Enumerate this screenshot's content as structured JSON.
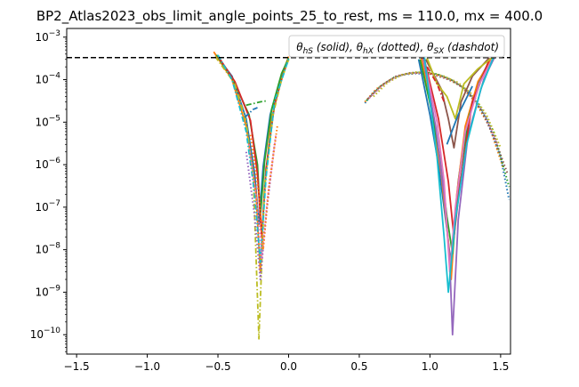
{
  "chart_data": {
    "type": "line",
    "title": "BP2_Atlas2023_obs_limit_angle_points_25_to_rest, ms = 110.0, mx = 400.0",
    "xlabel": "",
    "ylabel": "",
    "xlim": [
      -1.57,
      1.57
    ],
    "ylim": [
      3.5e-11,
      0.0016
    ],
    "yscale": "log",
    "grid": false,
    "x_ticks": [
      -1.5,
      -1.0,
      -0.5,
      0.0,
      0.5,
      1.0,
      1.5
    ],
    "x_tick_labels": [
      "−1.5",
      "−1.0",
      "−0.5",
      "0.0",
      "0.5",
      "1.0",
      "1.5"
    ],
    "y_ticks": [
      1e-10,
      1e-09,
      1e-08,
      1e-07,
      1e-06,
      1e-05,
      0.0001,
      0.001
    ],
    "y_tick_labels": [
      {
        "base": "10",
        "exp": "−10"
      },
      {
        "base": "10",
        "exp": "−9"
      },
      {
        "base": "10",
        "exp": "−8"
      },
      {
        "base": "10",
        "exp": "−7"
      },
      {
        "base": "10",
        "exp": "−6"
      },
      {
        "base": "10",
        "exp": "−5"
      },
      {
        "base": "10",
        "exp": "−4"
      },
      {
        "base": "10",
        "exp": "−3"
      }
    ],
    "reference_line": {
      "y": 0.00033,
      "style": "dashed",
      "color": "#000000"
    },
    "legend": {
      "placement": "top-right",
      "parts": [
        {
          "sym": "θ",
          "sub": "hS",
          "label": " (solid), "
        },
        {
          "sym": "θ",
          "sub": "hX",
          "label": " (dotted), "
        },
        {
          "sym": "θ",
          "sub": "SX",
          "label": " (dashdot)"
        }
      ]
    },
    "palette": [
      "#1f77b4",
      "#ff7f0e",
      "#2ca02c",
      "#d62728",
      "#9467bd",
      "#8c564b",
      "#e377c2",
      "#7f7f7f",
      "#bcbd22",
      "#17becf"
    ],
    "series": [
      {
        "style": "solid",
        "color": "#1f77b4",
        "points": [
          [
            -0.52,
            0.0004
          ],
          [
            -0.4,
            0.00012
          ],
          [
            -0.3,
            1.2e-05
          ],
          [
            -0.24,
            6e-07
          ],
          [
            -0.21,
            4e-08
          ],
          [
            -0.18,
            9e-07
          ],
          [
            -0.13,
            1.5e-05
          ],
          [
            -0.06,
            0.0001
          ],
          [
            0.0,
            0.0003
          ]
        ]
      },
      {
        "style": "solid",
        "color": "#ff7f0e",
        "points": [
          [
            -0.53,
            0.00045
          ],
          [
            -0.4,
            0.0001
          ],
          [
            -0.3,
            8e-06
          ],
          [
            -0.23,
            2e-07
          ],
          [
            -0.2,
            3e-09
          ],
          [
            -0.17,
            3e-07
          ],
          [
            -0.12,
            1.2e-05
          ],
          [
            -0.05,
            0.00012
          ],
          [
            0.0,
            0.00035
          ]
        ]
      },
      {
        "style": "solid",
        "color": "#2ca02c",
        "points": [
          [
            -0.51,
            0.00038
          ],
          [
            -0.4,
            0.00011
          ],
          [
            -0.28,
            1.5e-05
          ],
          [
            -0.22,
            1e-06
          ],
          [
            -0.2,
            6e-08
          ],
          [
            -0.17,
            1.2e-06
          ],
          [
            -0.12,
            2e-05
          ],
          [
            -0.05,
            0.00014
          ],
          [
            0.0,
            0.00032
          ]
        ]
      },
      {
        "style": "solid",
        "color": "#d62728",
        "points": [
          [
            -0.5,
            0.00036
          ],
          [
            -0.38,
            9e-05
          ],
          [
            -0.27,
            1.1e-05
          ],
          [
            -0.22,
            6e-07
          ],
          [
            -0.19,
            2e-08
          ],
          [
            -0.16,
            8e-07
          ],
          [
            -0.1,
            2.5e-05
          ],
          [
            -0.04,
            0.00013
          ],
          [
            0.0,
            0.0003
          ]
        ]
      },
      {
        "style": "dashdot",
        "color": "#bcbd22",
        "points": [
          [
            -0.52,
            0.00035
          ],
          [
            -0.38,
            8e-05
          ],
          [
            -0.3,
            1e-05
          ],
          [
            -0.25,
            5e-07
          ],
          [
            -0.21,
            8e-11
          ],
          [
            -0.17,
            3e-07
          ],
          [
            -0.11,
            1.5e-05
          ],
          [
            -0.05,
            0.0001
          ],
          [
            0.0,
            0.0003
          ]
        ]
      },
      {
        "style": "dashdot",
        "color": "#2ca02c",
        "points": [
          [
            -0.3,
            2.5e-05
          ],
          [
            -0.2,
            3e-05
          ],
          [
            -0.15,
            3.2e-05
          ]
        ]
      },
      {
        "style": "dashdot",
        "color": "#17becf",
        "points": [
          [
            -0.5,
            0.00038
          ],
          [
            -0.4,
            0.0001
          ],
          [
            -0.3,
            6e-06
          ],
          [
            -0.24,
            2e-07
          ],
          [
            -0.2,
            5e-09
          ],
          [
            -0.16,
            5e-07
          ],
          [
            -0.1,
            3e-05
          ],
          [
            0.0,
            0.00031
          ]
        ]
      },
      {
        "style": "dashdot",
        "color": "#1f77b4",
        "points": [
          [
            -0.31,
            1.3e-05
          ],
          [
            -0.25,
            2e-05
          ],
          [
            -0.22,
            2.2e-05
          ]
        ]
      },
      {
        "style": "dotted",
        "color": "#9467bd",
        "points": [
          [
            -0.3,
            2e-06
          ],
          [
            -0.24,
            6e-08
          ],
          [
            -0.2,
            2e-09
          ],
          [
            -0.16,
            6e-08
          ],
          [
            -0.1,
            3e-06
          ]
        ]
      },
      {
        "style": "dotted",
        "color": "#e377c2",
        "points": [
          [
            -0.28,
            3e-06
          ],
          [
            -0.22,
            1e-07
          ],
          [
            -0.19,
            6e-09
          ],
          [
            -0.15,
            1.5e-07
          ],
          [
            -0.09,
            5e-06
          ]
        ]
      },
      {
        "style": "dotted",
        "color": "#ff7f0e",
        "points": [
          [
            -0.27,
            5e-06
          ],
          [
            -0.21,
            2e-07
          ],
          [
            -0.18,
            1e-08
          ],
          [
            -0.14,
            3e-07
          ],
          [
            -0.08,
            8e-06
          ]
        ]
      },
      {
        "style": "dotted",
        "color": "#1f77b4",
        "points": [
          [
            0.54,
            2.8e-05
          ],
          [
            0.6,
            5e-05
          ],
          [
            0.7,
            9e-05
          ],
          [
            0.8,
            0.00013
          ],
          [
            0.9,
            0.00014
          ],
          [
            1.0,
            0.000135
          ],
          [
            1.1,
            0.00011
          ],
          [
            1.2,
            8e-05
          ],
          [
            1.3,
            4e-05
          ],
          [
            1.4,
            1.2e-05
          ],
          [
            1.5,
            1.5e-06
          ],
          [
            1.56,
            1.5e-07
          ]
        ]
      },
      {
        "style": "dotted",
        "color": "#ff7f0e",
        "points": [
          [
            0.54,
            3e-05
          ],
          [
            0.62,
            6e-05
          ],
          [
            0.72,
            0.0001
          ],
          [
            0.82,
            0.000135
          ],
          [
            0.92,
            0.000145
          ],
          [
            1.02,
            0.000135
          ],
          [
            1.12,
            0.000105
          ],
          [
            1.22,
            7e-05
          ],
          [
            1.32,
            3e-05
          ],
          [
            1.42,
            8e-06
          ],
          [
            1.52,
            8e-07
          ]
        ]
      },
      {
        "style": "dotted",
        "color": "#2ca02c",
        "points": [
          [
            0.55,
            3.2e-05
          ],
          [
            0.65,
            7e-05
          ],
          [
            0.75,
            0.000115
          ],
          [
            0.85,
            0.00014
          ],
          [
            0.95,
            0.00015
          ],
          [
            1.05,
            0.000135
          ],
          [
            1.15,
            0.0001
          ],
          [
            1.25,
            6e-05
          ],
          [
            1.35,
            2.5e-05
          ],
          [
            1.45,
            6e-06
          ],
          [
            1.56,
            3e-07
          ]
        ]
      },
      {
        "style": "dotted",
        "color": "#8c564b",
        "points": [
          [
            0.56,
            3.5e-05
          ],
          [
            0.66,
            7.5e-05
          ],
          [
            0.76,
            0.00012
          ],
          [
            0.86,
            0.000145
          ],
          [
            0.96,
            0.000145
          ],
          [
            1.06,
            0.00013
          ],
          [
            1.16,
            9.5e-05
          ],
          [
            1.26,
            5.5e-05
          ],
          [
            1.36,
            2e-05
          ],
          [
            1.46,
            4e-06
          ],
          [
            1.55,
            6e-07
          ]
        ]
      },
      {
        "style": "dotted",
        "color": "#e377c2",
        "points": [
          [
            0.57,
            3.7e-05
          ],
          [
            0.68,
            8e-05
          ],
          [
            0.78,
            0.000125
          ],
          [
            0.88,
            0.000145
          ],
          [
            0.98,
            0.00014
          ],
          [
            1.08,
            0.00012
          ],
          [
            1.18,
            9e-05
          ],
          [
            1.28,
            5e-05
          ],
          [
            1.38,
            1.8e-05
          ],
          [
            1.48,
            3e-06
          ]
        ]
      },
      {
        "style": "dotted",
        "color": "#bcbd22",
        "points": [
          [
            0.6,
            4e-05
          ],
          [
            0.7,
            8.5e-05
          ],
          [
            0.8,
            0.00013
          ],
          [
            0.9,
            0.00015
          ],
          [
            1.0,
            0.000145
          ],
          [
            1.1,
            0.00012
          ],
          [
            1.2,
            8.5e-05
          ],
          [
            1.3,
            4.5e-05
          ],
          [
            1.4,
            1.5e-05
          ],
          [
            1.5,
            2.5e-06
          ]
        ]
      },
      {
        "style": "solid",
        "color": "#1f77b4",
        "points": [
          [
            0.92,
            0.0003
          ],
          [
            1.0,
            1.5e-05
          ],
          [
            1.06,
            1e-06
          ],
          [
            1.12,
            3e-08
          ],
          [
            1.15,
            4e-09
          ],
          [
            1.2,
            4e-07
          ],
          [
            1.26,
            1e-05
          ],
          [
            1.35,
            0.0001
          ],
          [
            1.44,
            0.00035
          ]
        ]
      },
      {
        "style": "solid",
        "color": "#ff7f0e",
        "points": [
          [
            0.94,
            0.00032
          ],
          [
            1.02,
            1.2e-05
          ],
          [
            1.08,
            6e-07
          ],
          [
            1.13,
            1.5e-08
          ],
          [
            1.15,
            2e-09
          ],
          [
            1.19,
            2e-07
          ],
          [
            1.25,
            8e-06
          ],
          [
            1.34,
            9e-05
          ],
          [
            1.44,
            0.00032
          ]
        ]
      },
      {
        "style": "solid",
        "color": "#2ca02c",
        "points": [
          [
            0.93,
            0.0003
          ],
          [
            1.01,
            2e-05
          ],
          [
            1.07,
            1.5e-06
          ],
          [
            1.12,
            6e-08
          ],
          [
            1.16,
            8e-09
          ],
          [
            1.21,
            6e-07
          ],
          [
            1.28,
            1.5e-05
          ],
          [
            1.37,
            0.00012
          ],
          [
            1.46,
            0.00034
          ]
        ]
      },
      {
        "style": "solid",
        "color": "#9467bd",
        "points": [
          [
            0.95,
            0.00034
          ],
          [
            1.04,
            8e-06
          ],
          [
            1.1,
            2e-07
          ],
          [
            1.14,
            5e-09
          ],
          [
            1.16,
            1e-10
          ],
          [
            1.2,
            5e-08
          ],
          [
            1.27,
            5e-06
          ],
          [
            1.38,
            0.0001
          ],
          [
            1.46,
            0.00035
          ]
        ]
      },
      {
        "style": "solid",
        "color": "#d62728",
        "points": [
          [
            0.96,
            0.0003
          ],
          [
            1.06,
            1.2e-05
          ],
          [
            1.13,
            4e-07
          ],
          [
            1.17,
            2e-08
          ],
          [
            1.21,
            3e-07
          ],
          [
            1.3,
            3e-05
          ],
          [
            1.42,
            0.0003
          ]
        ]
      },
      {
        "style": "solid",
        "color": "#e377c2",
        "points": [
          [
            0.96,
            0.00028
          ],
          [
            1.05,
            1e-05
          ],
          [
            1.1,
            4e-07
          ],
          [
            1.14,
            3e-09
          ],
          [
            1.18,
            1e-07
          ],
          [
            1.25,
            6e-06
          ],
          [
            1.35,
            8e-05
          ],
          [
            1.44,
            0.0003
          ]
        ]
      },
      {
        "style": "solid",
        "color": "#8c564b",
        "points": [
          [
            0.97,
            0.0003
          ],
          [
            1.08,
            6e-05
          ],
          [
            1.13,
            1.2e-05
          ],
          [
            1.17,
            2.5e-06
          ],
          [
            1.22,
            3e-05
          ],
          [
            1.3,
            0.00012
          ],
          [
            1.42,
            0.00033
          ]
        ]
      },
      {
        "style": "solid",
        "color": "#bcbd22",
        "points": [
          [
            0.98,
            0.00032
          ],
          [
            1.05,
            8e-05
          ],
          [
            1.12,
            4e-05
          ],
          [
            1.18,
            1.2e-05
          ],
          [
            1.24,
            8e-05
          ],
          [
            1.34,
            0.00018
          ],
          [
            1.44,
            0.00033
          ]
        ]
      },
      {
        "style": "solid",
        "color": "#17becf",
        "points": [
          [
            0.96,
            0.00035
          ],
          [
            1.05,
            1.5e-06
          ],
          [
            1.1,
            2e-08
          ],
          [
            1.13,
            1e-09
          ],
          [
            1.18,
            5e-08
          ],
          [
            1.26,
            3e-06
          ],
          [
            1.36,
            6e-05
          ],
          [
            1.45,
            0.00034
          ]
        ]
      },
      {
        "style": "solid",
        "color": "#1f77b4",
        "points": [
          [
            1.12,
            3e-06
          ],
          [
            1.2,
            1.5e-05
          ],
          [
            1.3,
            7e-05
          ]
        ]
      },
      {
        "style": "dashdot",
        "color": "#d62728",
        "points": [
          [
            0.98,
            0.0002
          ],
          [
            1.05,
            8e-05
          ],
          [
            1.1,
            3e-05
          ]
        ]
      }
    ]
  }
}
